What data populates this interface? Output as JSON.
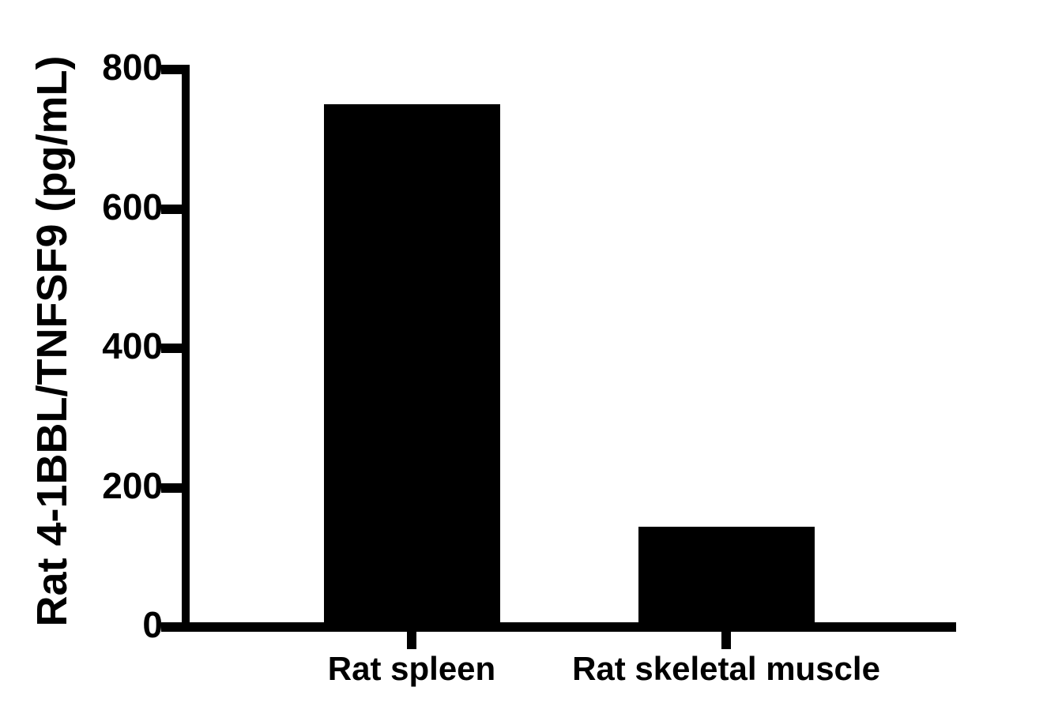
{
  "chart_data": {
    "type": "bar",
    "title": "",
    "categories": [
      "Rat spleen",
      "Rat skeletal muscle"
    ],
    "values": [
      750,
      144
    ],
    "xlabel": "",
    "ylabel": "Rat 4-1BBL/TNFSF9 (pg/mL)",
    "ylim": [
      0,
      800
    ],
    "yticks": [
      0,
      200,
      400,
      600,
      800
    ],
    "ytick_labels": [
      "0",
      "200",
      "400",
      "600",
      "800"
    ],
    "bar_color": "#000000",
    "axis_color": "#000000",
    "text_color": "#000000",
    "background_color": "#ffffff",
    "grid": "off",
    "legend": "none"
  }
}
